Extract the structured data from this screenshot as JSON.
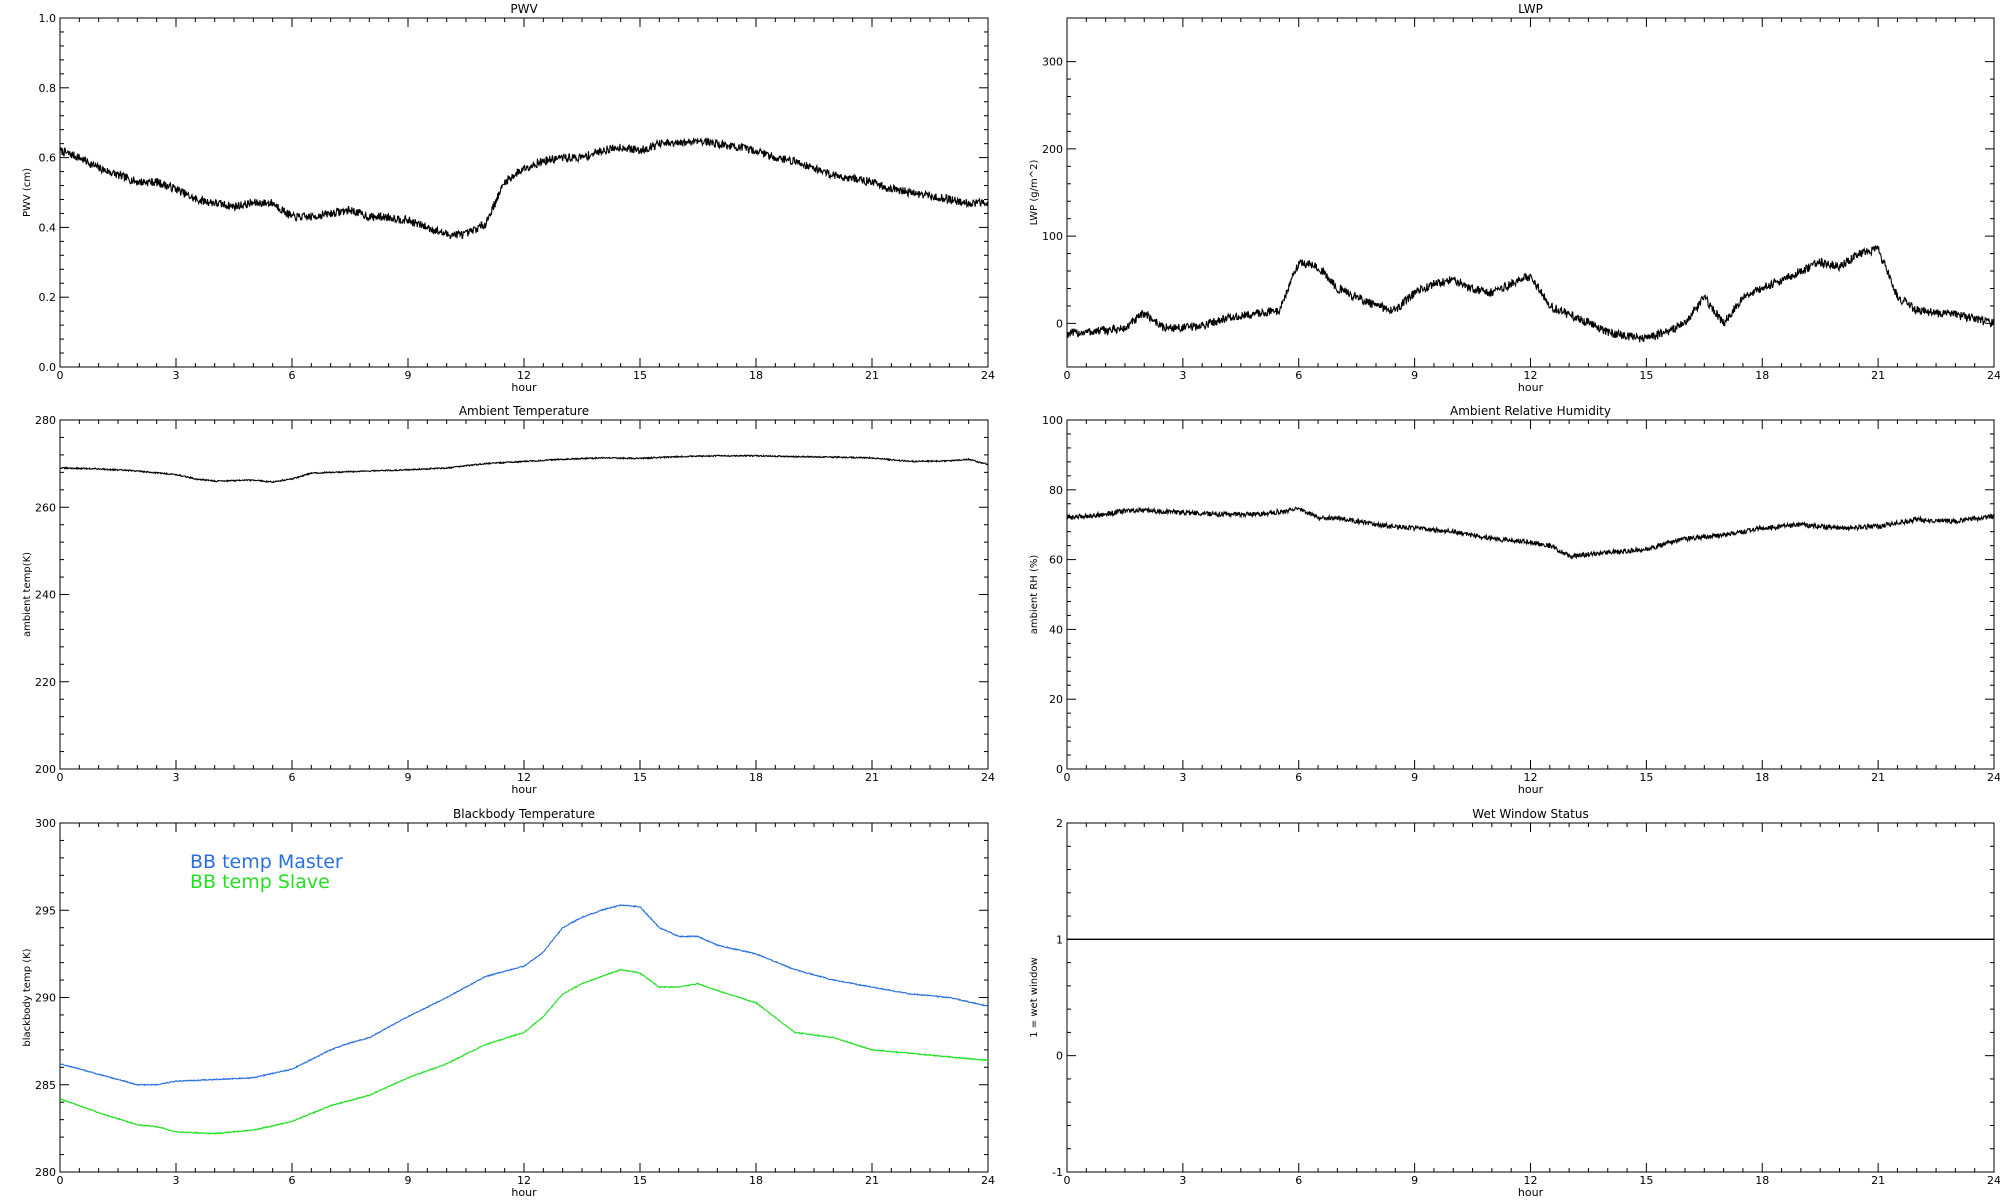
{
  "chart_data": [
    {
      "id": "pwv",
      "type": "line",
      "title": "PWV",
      "xlabel": "hour",
      "ylabel": "PWV (cm)",
      "xlim": [
        0,
        24
      ],
      "ylim": [
        0.0,
        1.0
      ],
      "xticks": [
        0,
        3,
        6,
        9,
        12,
        15,
        18,
        21,
        24
      ],
      "yticks": [
        0.0,
        0.2,
        0.4,
        0.6,
        0.8,
        1.0
      ],
      "ytick_labels": [
        "0.0",
        "0.2",
        "0.4",
        "0.6",
        "0.8",
        "1.0"
      ],
      "legend": "none",
      "series": [
        {
          "color": "#000000",
          "noise": 0.012,
          "x": [
            0,
            0.5,
            1,
            1.5,
            2,
            2.5,
            3,
            3.5,
            4,
            4.5,
            5,
            5.5,
            6,
            6.5,
            7,
            7.5,
            8,
            8.5,
            9,
            9.5,
            10,
            10.5,
            11,
            11.5,
            12,
            12.5,
            13,
            13.5,
            14,
            14.5,
            15,
            15.5,
            16,
            16.5,
            17,
            17.5,
            18,
            18.5,
            19,
            19.5,
            20,
            20.5,
            21,
            21.5,
            22,
            22.5,
            23,
            23.5,
            24
          ],
          "y": [
            0.62,
            0.6,
            0.57,
            0.55,
            0.53,
            0.53,
            0.51,
            0.48,
            0.47,
            0.46,
            0.47,
            0.47,
            0.43,
            0.43,
            0.44,
            0.45,
            0.43,
            0.43,
            0.42,
            0.4,
            0.38,
            0.38,
            0.41,
            0.53,
            0.57,
            0.59,
            0.6,
            0.6,
            0.62,
            0.63,
            0.62,
            0.64,
            0.64,
            0.65,
            0.64,
            0.63,
            0.62,
            0.6,
            0.59,
            0.57,
            0.55,
            0.54,
            0.53,
            0.51,
            0.5,
            0.49,
            0.48,
            0.47,
            0.47
          ]
        }
      ]
    },
    {
      "id": "lwp",
      "type": "line",
      "title": "LWP",
      "xlabel": "hour",
      "ylabel": "LWP (g/m^2)",
      "xlim": [
        0,
        24
      ],
      "ylim": [
        -50,
        350
      ],
      "xticks": [
        0,
        3,
        6,
        9,
        12,
        15,
        18,
        21,
        24
      ],
      "yticks": [
        0,
        100,
        200,
        300
      ],
      "ytick_labels": [
        "0",
        "100",
        "200",
        "300"
      ],
      "legend": "none",
      "series": [
        {
          "color": "#000000",
          "noise": 5,
          "x": [
            0,
            0.5,
            1,
            1.5,
            2,
            2.5,
            3,
            3.5,
            4,
            4.5,
            5,
            5.5,
            6,
            6.5,
            7,
            7.5,
            8,
            8.5,
            9,
            9.5,
            10,
            10.5,
            11,
            11.5,
            12,
            12.5,
            13,
            13.5,
            14,
            14.5,
            15,
            15.5,
            16,
            16.5,
            17,
            17.5,
            18,
            18.5,
            19,
            19.5,
            20,
            20.5,
            21,
            21.5,
            22,
            22.5,
            23,
            23.5,
            24
          ],
          "y": [
            -12,
            -10,
            -8,
            -6,
            12,
            -5,
            -5,
            -3,
            5,
            8,
            12,
            15,
            70,
            65,
            40,
            30,
            20,
            15,
            35,
            45,
            50,
            40,
            35,
            45,
            55,
            20,
            10,
            0,
            -10,
            -15,
            -18,
            -10,
            0,
            30,
            0,
            30,
            40,
            50,
            60,
            70,
            65,
            80,
            85,
            30,
            15,
            12,
            10,
            5,
            0
          ]
        }
      ]
    },
    {
      "id": "ambient-temp",
      "type": "line",
      "title": "Ambient Temperature",
      "xlabel": "hour",
      "ylabel": "ambient temp(K)",
      "xlim": [
        0,
        24
      ],
      "ylim": [
        200,
        280
      ],
      "xticks": [
        0,
        3,
        6,
        9,
        12,
        15,
        18,
        21,
        24
      ],
      "yticks": [
        200,
        220,
        240,
        260,
        280
      ],
      "ytick_labels": [
        "200",
        "220",
        "240",
        "260",
        "280"
      ],
      "legend": "none",
      "series": [
        {
          "color": "#000000",
          "noise": 0.15,
          "x": [
            0,
            1,
            2,
            3,
            3.5,
            4,
            5,
            5.5,
            6,
            6.5,
            7,
            8,
            9,
            10,
            11,
            12,
            13,
            14,
            15,
            16,
            17,
            18,
            19,
            20,
            21,
            22,
            23,
            23.5,
            24
          ],
          "y": [
            269.0,
            268.8,
            268.3,
            267.5,
            266.5,
            266.0,
            266.2,
            265.8,
            266.5,
            267.8,
            268.0,
            268.3,
            268.6,
            269.0,
            270.0,
            270.5,
            271.0,
            271.3,
            271.2,
            271.6,
            271.8,
            271.8,
            271.6,
            271.5,
            271.3,
            270.5,
            270.6,
            271.0,
            269.8
          ]
        }
      ]
    },
    {
      "id": "ambient-rh",
      "type": "line",
      "title": "Ambient Relative Humidity",
      "xlabel": "hour",
      "ylabel": "ambient RH (%)",
      "xlim": [
        0,
        24
      ],
      "ylim": [
        0,
        100
      ],
      "xticks": [
        0,
        3,
        6,
        9,
        12,
        15,
        18,
        21,
        24
      ],
      "yticks": [
        0,
        20,
        40,
        60,
        80,
        100
      ],
      "ytick_labels": [
        "0",
        "20",
        "40",
        "60",
        "80",
        "100"
      ],
      "legend": "none",
      "series": [
        {
          "color": "#000000",
          "noise": 0.7,
          "x": [
            0,
            0.5,
            1,
            1.5,
            2,
            3,
            4,
            5,
            6,
            6.5,
            7,
            8,
            9,
            10,
            11,
            12,
            12.5,
            13,
            14,
            15,
            16,
            17,
            18,
            19,
            20,
            21,
            22,
            23,
            24
          ],
          "y": [
            72,
            72.5,
            73,
            74,
            74,
            73.5,
            73,
            73,
            74.5,
            72,
            72,
            70,
            69,
            68,
            66,
            65,
            64,
            61,
            62,
            63,
            66,
            67,
            69,
            70,
            69,
            69.5,
            71.5,
            71,
            72.5
          ]
        }
      ]
    },
    {
      "id": "blackbody-temp",
      "type": "line",
      "title": "Blackbody Temperature",
      "xlabel": "hour",
      "ylabel": "blackbody temp (K)",
      "xlim": [
        0,
        24
      ],
      "ylim": [
        280,
        300
      ],
      "xticks": [
        0,
        3,
        6,
        9,
        12,
        15,
        18,
        21,
        24
      ],
      "yticks": [
        280,
        285,
        290,
        295,
        300
      ],
      "ytick_labels": [
        "280",
        "285",
        "290",
        "295",
        "300"
      ],
      "legend": "top-left",
      "series": [
        {
          "name": "BB temp Master",
          "color": "#2a6fe0",
          "noise": 0.03,
          "x": [
            0,
            1,
            2,
            2.5,
            3,
            4,
            5,
            6,
            7,
            7.5,
            8,
            9,
            10,
            11,
            12,
            12.5,
            13,
            13.5,
            14,
            14.5,
            15,
            15.5,
            16,
            16.5,
            17,
            18,
            19,
            20,
            21,
            22,
            23,
            24
          ],
          "y": [
            286.2,
            285.6,
            285.0,
            285.0,
            285.2,
            285.3,
            285.4,
            285.9,
            287.0,
            287.4,
            287.7,
            288.9,
            290.0,
            291.2,
            291.8,
            292.6,
            294.0,
            294.6,
            295.0,
            295.3,
            295.2,
            294.0,
            293.5,
            293.5,
            293.0,
            292.5,
            291.6,
            291.0,
            290.6,
            290.2,
            290.0,
            289.5
          ]
        },
        {
          "name": "BB temp Slave",
          "color": "#22e022",
          "noise": 0.03,
          "x": [
            0,
            1,
            2,
            2.5,
            3,
            4,
            5,
            6,
            7,
            7.5,
            8,
            9,
            10,
            11,
            12,
            12.5,
            13,
            13.5,
            14,
            14.5,
            15,
            15.5,
            16,
            16.5,
            17,
            18,
            19,
            20,
            21,
            22,
            23,
            24
          ],
          "y": [
            284.2,
            283.4,
            282.7,
            282.6,
            282.3,
            282.2,
            282.4,
            282.9,
            283.8,
            284.1,
            284.4,
            285.4,
            286.2,
            287.3,
            288.0,
            288.9,
            290.2,
            290.8,
            291.2,
            291.6,
            291.4,
            290.6,
            290.6,
            290.8,
            290.4,
            289.7,
            288.0,
            287.7,
            287.0,
            286.8,
            286.6,
            286.4
          ]
        }
      ]
    },
    {
      "id": "wet-window",
      "type": "line",
      "title": "Wet Window Status",
      "xlabel": "hour",
      "ylabel": "1 = wet window",
      "xlim": [
        0,
        24
      ],
      "ylim": [
        -1,
        2
      ],
      "xticks": [
        0,
        3,
        6,
        9,
        12,
        15,
        18,
        21,
        24
      ],
      "yticks": [
        -1,
        0,
        1,
        2
      ],
      "ytick_labels": [
        "-1",
        "0",
        "1",
        "2"
      ],
      "legend": "none",
      "series": [
        {
          "color": "#000000",
          "noise": 0,
          "x": [
            0,
            24
          ],
          "y": [
            1,
            1
          ]
        }
      ]
    }
  ]
}
